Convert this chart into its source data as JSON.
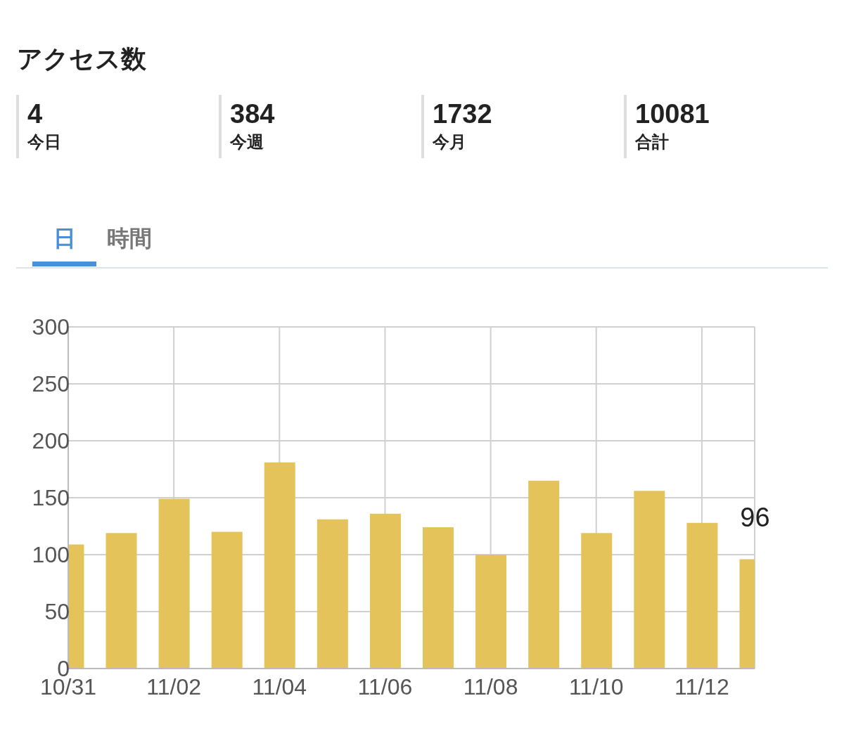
{
  "chart_data": {
    "type": "bar",
    "title": "アクセス数",
    "annotations": [
      "4",
      "今日",
      "384",
      "今週",
      "1732",
      "今月",
      "10081",
      "合計",
      "日",
      "時間"
    ],
    "categories": [
      "10/31",
      null,
      "11/02",
      null,
      "11/04",
      null,
      "11/06",
      null,
      "11/08",
      null,
      "11/10",
      null,
      "11/12",
      null
    ],
    "values": [
      109,
      119,
      149,
      120,
      181,
      131,
      136,
      124,
      100,
      165,
      119,
      156,
      128,
      96
    ],
    "value_labels": [
      null,
      null,
      null,
      null,
      null,
      null,
      null,
      null,
      null,
      null,
      null,
      null,
      null,
      "96"
    ],
    "color": "#e5c35b",
    "ylim": [
      0,
      300
    ],
    "yticks": [
      0,
      50,
      100,
      150,
      200,
      250,
      300
    ],
    "grid": true
  }
}
